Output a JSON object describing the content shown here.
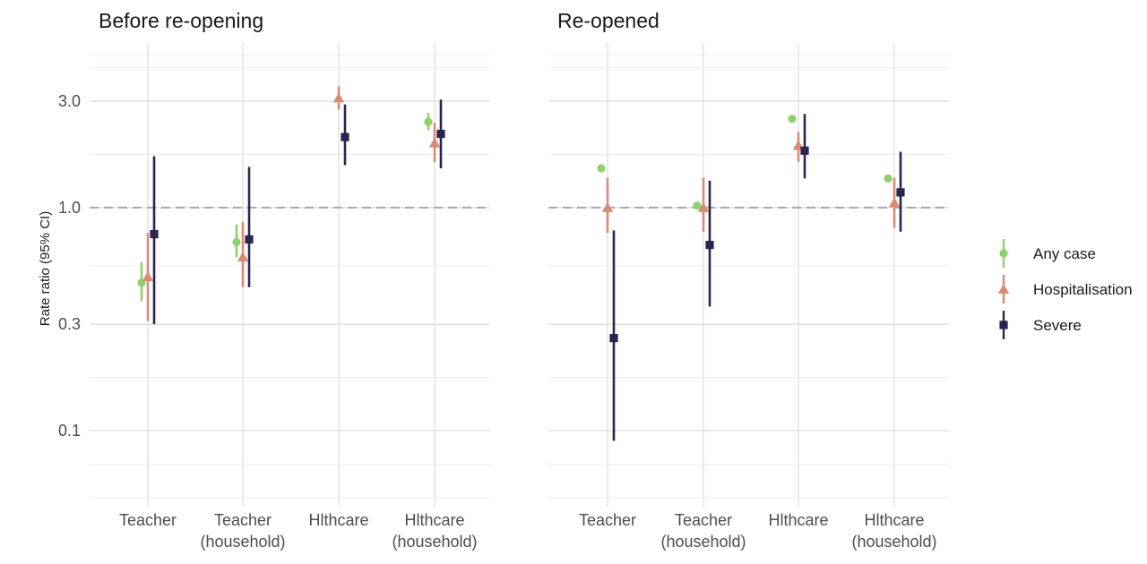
{
  "chart_data": {
    "type": "scatter",
    "ylabel": "Rate ratio (95% CI)",
    "yscale": "log",
    "ylim": [
      0.05,
      6.0
    ],
    "yticks": [
      0.1,
      0.3,
      1.0,
      3.0
    ],
    "ytick_labels": [
      "0.1",
      "0.3",
      "1.0",
      "3.0"
    ],
    "reference_line": 1.0,
    "grid": true,
    "legend_position": "right",
    "colors": {
      "Any case": "#8fd16a",
      "Hospitalisation": "#d98b74",
      "Severe": "#2b2450"
    },
    "series_names": [
      "Any case",
      "Hospitalisation",
      "Severe"
    ],
    "categories": [
      {
        "line1": "Teacher",
        "line2": ""
      },
      {
        "line1": "Teacher",
        "line2": "(household)"
      },
      {
        "line1": "Hlthcare",
        "line2": ""
      },
      {
        "line1": "Hlthcare",
        "line2": "(household)"
      }
    ],
    "panels": [
      {
        "title": "Before re-opening",
        "series": [
          {
            "name": "Any case",
            "values": [
              0.46,
              0.7,
              null,
              2.42
            ],
            "lower": [
              0.38,
              0.6,
              null,
              2.22
            ],
            "upper": [
              0.57,
              0.84,
              null,
              2.65
            ]
          },
          {
            "name": "Hospitalisation",
            "values": [
              0.49,
              0.6,
              3.1,
              1.95
            ],
            "lower": [
              0.31,
              0.44,
              2.75,
              1.6
            ],
            "upper": [
              0.77,
              0.86,
              3.5,
              2.4
            ]
          },
          {
            "name": "Severe",
            "values": [
              0.76,
              0.72,
              2.07,
              2.14
            ],
            "lower": [
              0.3,
              0.44,
              1.55,
              1.5
            ],
            "upper": [
              1.7,
              1.52,
              2.9,
              3.05
            ]
          }
        ]
      },
      {
        "title": "Re-opened",
        "series": [
          {
            "name": "Any case",
            "values": [
              1.5,
              1.02,
              2.5,
              1.35
            ],
            "lower": [
              1.45,
              0.98,
              2.45,
              1.31
            ],
            "upper": [
              1.55,
              1.06,
              2.55,
              1.39
            ]
          },
          {
            "name": "Hospitalisation",
            "values": [
              1.0,
              1.0,
              1.9,
              1.05
            ],
            "lower": [
              0.77,
              0.78,
              1.6,
              0.81
            ],
            "upper": [
              1.36,
              1.36,
              2.18,
              1.36
            ]
          },
          {
            "name": "Severe",
            "values": [
              0.26,
              0.68,
              1.8,
              1.17
            ],
            "lower": [
              0.09,
              0.36,
              1.35,
              0.78
            ],
            "upper": [
              0.79,
              1.32,
              2.63,
              1.78
            ]
          }
        ]
      }
    ]
  }
}
